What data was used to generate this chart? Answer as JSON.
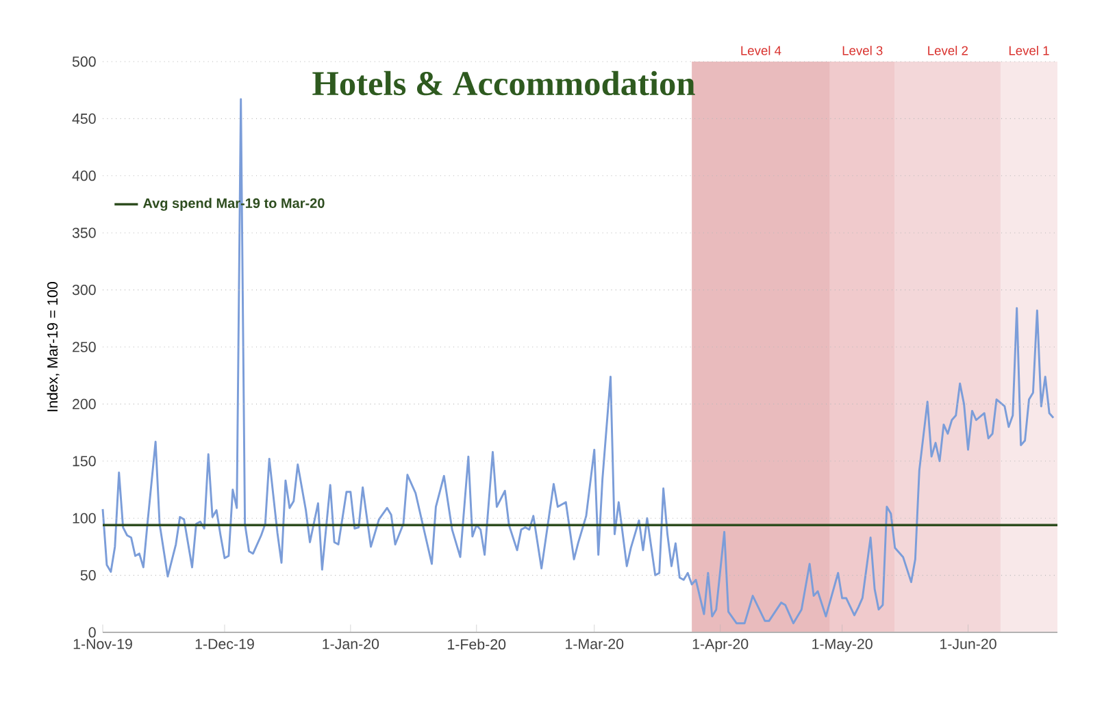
{
  "chart_data": {
    "type": "line",
    "title": "Hotels & Accommodation",
    "ylabel": "Index, Mar-19 = 100",
    "x": [
      "2019-11-01",
      "2019-11-02",
      "2019-11-03",
      "2019-11-04",
      "2019-11-05",
      "2019-11-06",
      "2019-11-07",
      "2019-11-08",
      "2019-11-09",
      "2019-11-10",
      "2019-11-11",
      "2019-11-12",
      "2019-11-14",
      "2019-11-15",
      "2019-11-17",
      "2019-11-19",
      "2019-11-20",
      "2019-11-21",
      "2019-11-23",
      "2019-11-24",
      "2019-11-25",
      "2019-11-26",
      "2019-11-27",
      "2019-11-28",
      "2019-11-29",
      "2019-11-30",
      "2019-12-01",
      "2019-12-02",
      "2019-12-03",
      "2019-12-04",
      "2019-12-05",
      "2019-12-06",
      "2019-12-07",
      "2019-12-08",
      "2019-12-10",
      "2019-12-11",
      "2019-12-12",
      "2019-12-14",
      "2019-12-15",
      "2019-12-16",
      "2019-12-17",
      "2019-12-18",
      "2019-12-19",
      "2019-12-21",
      "2019-12-22",
      "2019-12-24",
      "2019-12-25",
      "2019-12-27",
      "2019-12-28",
      "2019-12-29",
      "2019-12-31",
      "2020-01-01",
      "2020-01-02",
      "2020-01-03",
      "2020-01-04",
      "2020-01-06",
      "2020-01-08",
      "2020-01-10",
      "2020-01-11",
      "2020-01-12",
      "2020-01-14",
      "2020-01-15",
      "2020-01-17",
      "2020-01-19",
      "2020-01-21",
      "2020-01-22",
      "2020-01-24",
      "2020-01-26",
      "2020-01-28",
      "2020-01-30",
      "2020-01-31",
      "2020-02-01",
      "2020-02-02",
      "2020-02-03",
      "2020-02-05",
      "2020-02-06",
      "2020-02-08",
      "2020-02-09",
      "2020-02-11",
      "2020-02-12",
      "2020-02-13",
      "2020-02-14",
      "2020-02-15",
      "2020-02-17",
      "2020-02-20",
      "2020-02-21",
      "2020-02-23",
      "2020-02-25",
      "2020-02-26",
      "2020-02-28",
      "2020-03-01",
      "2020-03-02",
      "2020-03-03",
      "2020-03-05",
      "2020-03-06",
      "2020-03-07",
      "2020-03-09",
      "2020-03-10",
      "2020-03-12",
      "2020-03-13",
      "2020-03-14",
      "2020-03-16",
      "2020-03-17",
      "2020-03-18",
      "2020-03-19",
      "2020-03-20",
      "2020-03-21",
      "2020-03-22",
      "2020-03-23",
      "2020-03-24",
      "2020-03-25",
      "2020-03-26",
      "2020-03-28",
      "2020-03-29",
      "2020-03-30",
      "2020-03-31",
      "2020-04-02",
      "2020-04-03",
      "2020-04-05",
      "2020-04-07",
      "2020-04-09",
      "2020-04-12",
      "2020-04-13",
      "2020-04-16",
      "2020-04-17",
      "2020-04-19",
      "2020-04-21",
      "2020-04-23",
      "2020-04-24",
      "2020-04-25",
      "2020-04-27",
      "2020-04-30",
      "2020-05-01",
      "2020-05-02",
      "2020-05-04",
      "2020-05-05",
      "2020-05-06",
      "2020-05-08",
      "2020-05-09",
      "2020-05-10",
      "2020-05-11",
      "2020-05-12",
      "2020-05-13",
      "2020-05-14",
      "2020-05-16",
      "2020-05-18",
      "2020-05-19",
      "2020-05-20",
      "2020-05-22",
      "2020-05-23",
      "2020-05-24",
      "2020-05-25",
      "2020-05-26",
      "2020-05-27",
      "2020-05-28",
      "2020-05-29",
      "2020-05-30",
      "2020-05-31",
      "2020-06-01",
      "2020-06-02",
      "2020-06-03",
      "2020-06-05",
      "2020-06-06",
      "2020-06-07",
      "2020-06-08",
      "2020-06-10",
      "2020-06-11",
      "2020-06-12",
      "2020-06-13",
      "2020-06-14",
      "2020-06-15",
      "2020-06-16",
      "2020-06-17",
      "2020-06-18",
      "2020-06-19",
      "2020-06-20",
      "2020-06-21",
      "2020-06-22"
    ],
    "series": [
      {
        "color": "#7b9dd9",
        "values": [
          108,
          59,
          53,
          75,
          140,
          92,
          85,
          83,
          67,
          69,
          57,
          95,
          167,
          95,
          49,
          77,
          101,
          99,
          57,
          95,
          97,
          91,
          156,
          101,
          107,
          85,
          65,
          67,
          125,
          109,
          467,
          95,
          71,
          69,
          85,
          95,
          152,
          87,
          61,
          133,
          109,
          115,
          147,
          107,
          79,
          113,
          55,
          129,
          79,
          77,
          123,
          123,
          91,
          92,
          127,
          75,
          99,
          109,
          103,
          77,
          95,
          138,
          122,
          91,
          60,
          110,
          137,
          90,
          66,
          154,
          84,
          94,
          90,
          68,
          158,
          110,
          124,
          94,
          72,
          90,
          92,
          90,
          102,
          56,
          130,
          110,
          114,
          64,
          78,
          102,
          160,
          68,
          134,
          224,
          86,
          114,
          58,
          74,
          98,
          72,
          100,
          50,
          52,
          126,
          86,
          58,
          78,
          48,
          46,
          52,
          42,
          46,
          16,
          52,
          14,
          20,
          88,
          18,
          8,
          8,
          32,
          10,
          10,
          26,
          24,
          8,
          20,
          60,
          32,
          36,
          14,
          52,
          30,
          30,
          15,
          22,
          30,
          83,
          38,
          20,
          24,
          110,
          104,
          74,
          66,
          44,
          64,
          142,
          202,
          154,
          166,
          150,
          182,
          174,
          186,
          190,
          218,
          200,
          160,
          194,
          186,
          192,
          170,
          174,
          204,
          198,
          180,
          190,
          284,
          164,
          168,
          204,
          210,
          282,
          198,
          224,
          192,
          188
        ]
      }
    ],
    "xlim": [
      "2019-11-01",
      "2020-06-23"
    ],
    "xticks": [
      {
        "value": "2019-11-01",
        "label": "1-Nov-19"
      },
      {
        "value": "2019-12-01",
        "label": "1-Dec-19"
      },
      {
        "value": "2020-01-01",
        "label": "1-Jan-20"
      },
      {
        "value": "2020-02-01",
        "label": "1-Feb-20"
      },
      {
        "value": "2020-03-01",
        "label": "1-Mar-20"
      },
      {
        "value": "2020-04-01",
        "label": "1-Apr-20"
      },
      {
        "value": "2020-05-01",
        "label": "1-May-20"
      },
      {
        "value": "2020-06-01",
        "label": "1-Jun-20"
      }
    ],
    "ylim": [
      0,
      500
    ],
    "yticks": [
      0,
      50,
      100,
      150,
      200,
      250,
      300,
      350,
      400,
      450,
      500
    ],
    "grid": "y",
    "legend": "top left",
    "line_style": "solid",
    "marker": "none",
    "ref_lines": [
      {
        "axis": "y",
        "value": 94,
        "label": "Avg spend Mar-19 to Mar-20",
        "color": "#2e4d1f"
      }
    ],
    "bands": [
      {
        "axis": "x",
        "from": "2020-03-25",
        "to": "2020-04-28",
        "label": "Level 4",
        "color": "#e9bbbd"
      },
      {
        "axis": "x",
        "from": "2020-04-28",
        "to": "2020-05-14",
        "label": "Level 3",
        "color": "#f0cacc"
      },
      {
        "axis": "x",
        "from": "2020-05-14",
        "to": "2020-06-09",
        "label": "Level 2",
        "color": "#f3d7d9"
      },
      {
        "axis": "x",
        "from": "2020-06-09",
        "to": "2020-06-23",
        "label": "Level 1",
        "color": "#f8e8e9"
      }
    ]
  }
}
